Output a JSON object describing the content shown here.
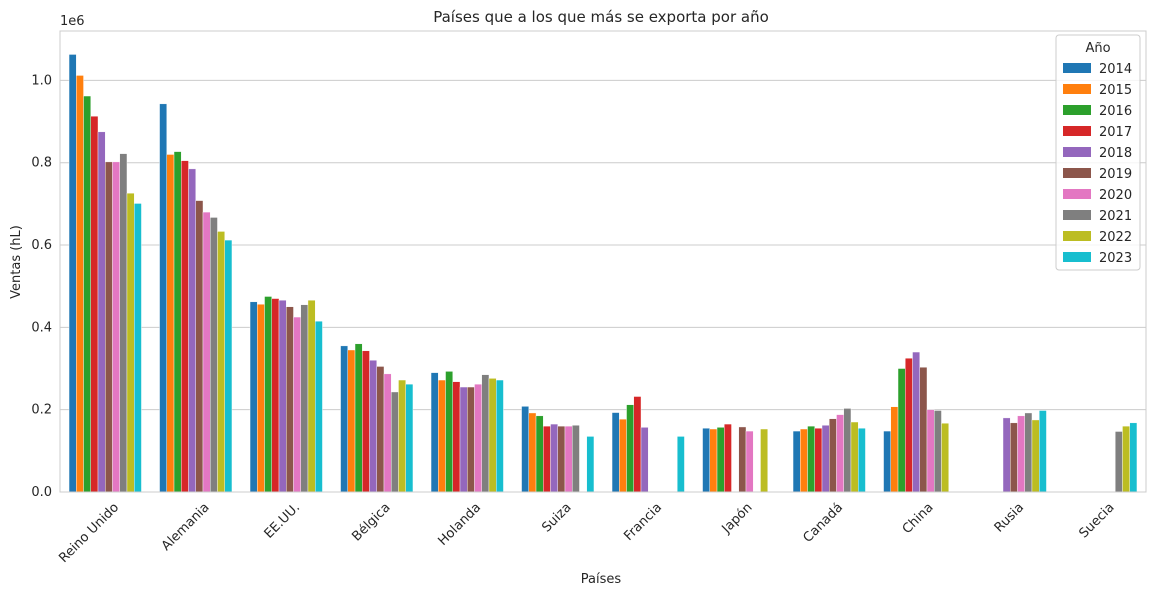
{
  "chart_data": {
    "type": "bar",
    "title": "Países que a los que más se exporta por año",
    "xlabel": "Países",
    "ylabel": "Ventas (hL)",
    "y_offset_label": "1e6",
    "ylim": [
      0,
      1.12
    ],
    "yticks": [
      "0.0",
      "0.2",
      "0.4",
      "0.6",
      "0.8",
      "1.0"
    ],
    "grid": true,
    "legend_title": "Año",
    "legend_position": "top-right",
    "categories": [
      "Reino Unido",
      "Alemania",
      "EE.UU.",
      "Bélgica",
      "Holanda",
      "Suiza",
      "Francia",
      "Japón",
      "Canadá",
      "China",
      "Rusia",
      "Suecia"
    ],
    "series": [
      {
        "name": "2014",
        "color": "#1f77b4",
        "values": [
          1.063,
          0.943,
          0.462,
          0.355,
          0.29,
          0.208,
          0.193,
          0.155,
          0.148,
          0.148,
          null,
          null
        ]
      },
      {
        "name": "2015",
        "color": "#ff7f0e",
        "values": [
          1.012,
          0.82,
          0.456,
          0.345,
          0.272,
          0.192,
          0.177,
          0.153,
          0.153,
          0.207,
          null,
          null
        ]
      },
      {
        "name": "2016",
        "color": "#2ca02c",
        "values": [
          0.962,
          0.827,
          0.475,
          0.36,
          0.293,
          0.185,
          0.212,
          0.157,
          0.16,
          0.3,
          null,
          null
        ]
      },
      {
        "name": "2017",
        "color": "#d62728",
        "values": [
          0.913,
          0.805,
          0.47,
          0.343,
          0.268,
          0.16,
          0.232,
          0.165,
          0.155,
          0.325,
          null,
          null
        ]
      },
      {
        "name": "2018",
        "color": "#9467bd",
        "values": [
          0.875,
          0.785,
          0.466,
          0.32,
          0.255,
          0.165,
          0.157,
          null,
          0.162,
          0.34,
          0.18,
          null
        ]
      },
      {
        "name": "2019",
        "color": "#8c564b",
        "values": [
          0.802,
          0.708,
          0.45,
          0.305,
          0.255,
          0.16,
          null,
          0.158,
          0.178,
          0.303,
          0.168,
          null
        ]
      },
      {
        "name": "2020",
        "color": "#e377c2",
        "values": [
          0.802,
          0.68,
          0.425,
          0.287,
          0.262,
          0.16,
          null,
          0.148,
          0.188,
          0.2,
          0.185,
          null
        ]
      },
      {
        "name": "2021",
        "color": "#7f7f7f",
        "values": [
          0.822,
          0.667,
          0.455,
          0.243,
          0.285,
          0.162,
          null,
          null,
          0.203,
          0.198,
          0.192,
          0.147
        ]
      },
      {
        "name": "2022",
        "color": "#bcbd22",
        "values": [
          0.726,
          0.633,
          0.466,
          0.272,
          0.276,
          null,
          null,
          0.153,
          0.17,
          0.167,
          0.175,
          0.16
        ]
      },
      {
        "name": "2023",
        "color": "#17becf",
        "values": [
          0.701,
          0.612,
          0.415,
          0.262,
          0.272,
          0.135,
          0.135,
          null,
          0.155,
          null,
          0.198,
          0.168
        ]
      }
    ]
  }
}
